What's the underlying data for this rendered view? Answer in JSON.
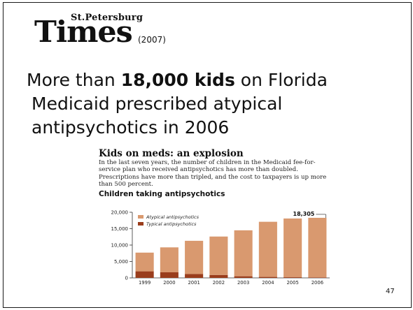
{
  "masthead": {
    "small": "St.Petersburg",
    "big": "Times",
    "year": "(2007)"
  },
  "headline": {
    "prefix": "More than ",
    "bold": "18,000 kids",
    "suffix": " on Florida",
    "line2": "Medicaid prescribed atypical",
    "line3": "antipsychotics in 2006"
  },
  "figure": {
    "title": "Kids on meds: an explosion",
    "description": "In the last seven years, the number of children in the Medicaid fee-for-service plan who received antipsychotics has more than doubled. Prescriptions have more than tripled, and the cost to taxpayers is up more than 500 percent.",
    "subtitle": "Children taking antipsychotics"
  },
  "page_number": "47",
  "colors": {
    "atypical": "#d9996f",
    "typical": "#9a3d1c",
    "axis": "#333333"
  },
  "chart_data": {
    "type": "bar",
    "stacked": true,
    "categories": [
      "1999",
      "2000",
      "2001",
      "2002",
      "2003",
      "2004",
      "2005",
      "2006"
    ],
    "series": [
      {
        "name": "Typical antipsychotics",
        "values": [
          2000,
          1700,
          1200,
          900,
          500,
          300,
          200,
          150
        ]
      },
      {
        "name": "Atypical antipsychotics",
        "values": [
          5700,
          7600,
          10100,
          11700,
          14000,
          16800,
          17900,
          18155
        ]
      }
    ],
    "ylim": [
      0,
      20000
    ],
    "yticks": [
      "20,000",
      "15,000",
      "10,000",
      "5,000",
      "0"
    ],
    "annotation": "18,305",
    "legend_position": "top-left",
    "grid": false
  }
}
